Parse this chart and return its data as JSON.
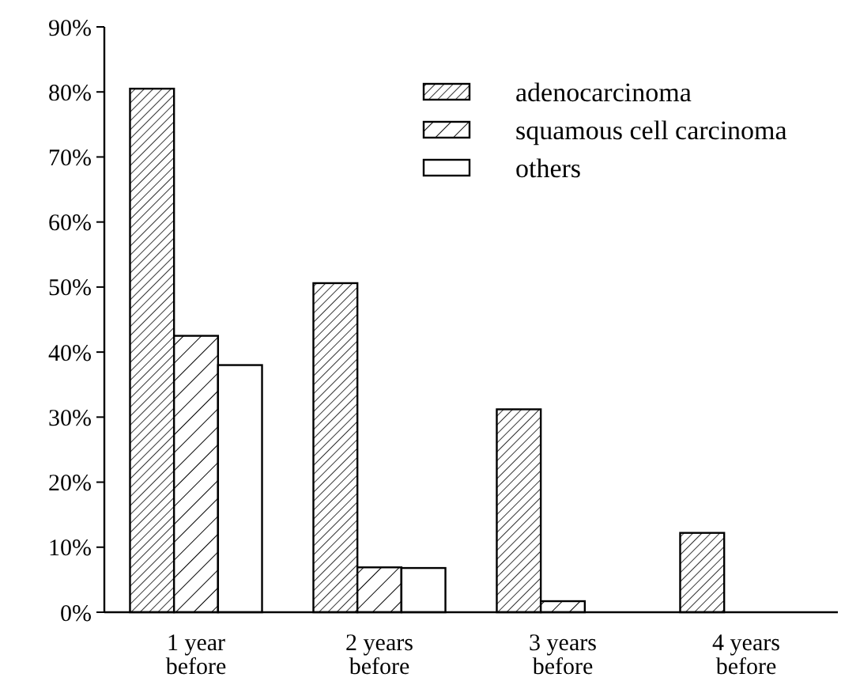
{
  "chart_data": {
    "type": "bar",
    "categories": [
      "1 year before",
      "2 years before",
      "3 years before",
      "4 years before"
    ],
    "series": [
      {
        "name": "adenocarcinoma",
        "color": "#000000",
        "values": [
          80.5,
          50.6,
          31.2,
          12.2
        ]
      },
      {
        "name": "squamous cell carcinoma",
        "color": "#000000",
        "values": [
          42.5,
          6.9,
          1.7,
          0
        ]
      },
      {
        "name": "others",
        "color": "#000000",
        "values": [
          38,
          6.8,
          0,
          0
        ]
      }
    ],
    "ylim": [
      0,
      90
    ],
    "yticks": [
      {
        "value": 0,
        "label": "0%"
      },
      {
        "value": 10,
        "label": "10%"
      },
      {
        "value": 20,
        "label": "20%"
      },
      {
        "value": 30,
        "label": "30%"
      },
      {
        "value": 40,
        "label": "40%"
      },
      {
        "value": 50,
        "label": "50%"
      },
      {
        "value": 60,
        "label": "60%"
      },
      {
        "value": 70,
        "label": "70%"
      },
      {
        "value": 80,
        "label": "80%"
      },
      {
        "value": 90,
        "label": "90%"
      }
    ],
    "grid": false,
    "legend": "top right"
  }
}
